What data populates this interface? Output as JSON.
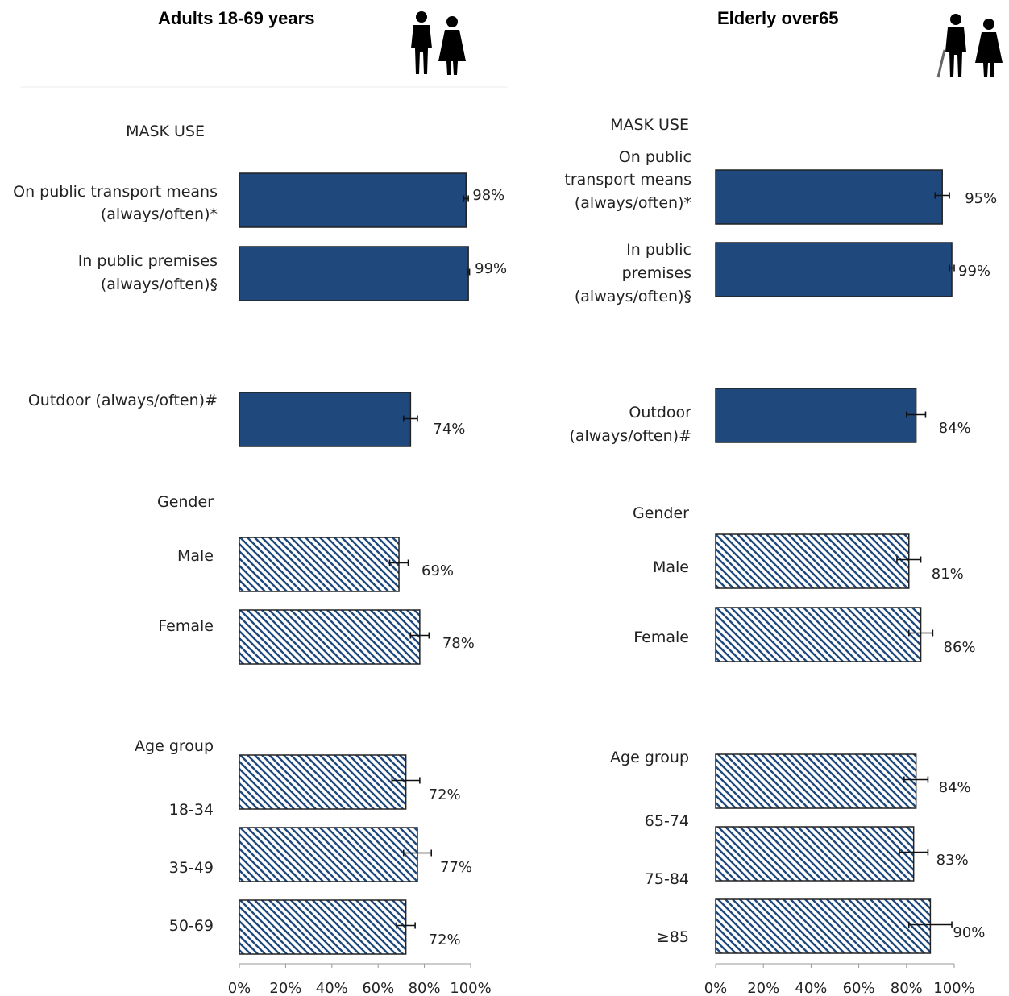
{
  "chart_data": [
    {
      "type": "bar",
      "orientation": "horizontal",
      "title": "Adults 18-69 years",
      "xlim": [
        0,
        100
      ],
      "x_ticks": [
        "0%",
        "20%",
        "40%",
        "60%",
        "80%",
        "100%"
      ],
      "colors": {
        "solid": "#1f497d",
        "hatch": "#1f497d"
      },
      "groups": [
        {
          "label": "MASK USE",
          "style": "solid",
          "bars": [
            {
              "label": [
                "On public transport means",
                "(always/often)*"
              ],
              "value": 98,
              "value_label": "98%",
              "err": 1
            },
            {
              "label": [
                "In public premises",
                "(always/often)§"
              ],
              "value": 99,
              "value_label": "99%",
              "err": 0.5
            },
            {
              "label": [
                "Outdoor (always/often)#"
              ],
              "value": 74,
              "value_label": "74%",
              "err": 3
            }
          ]
        },
        {
          "label": "Gender",
          "style": "hatch",
          "bars": [
            {
              "label": [
                "Male"
              ],
              "value": 69,
              "value_label": "69%",
              "err": 4
            },
            {
              "label": [
                "Female"
              ],
              "value": 78,
              "value_label": "78%",
              "err": 4
            }
          ]
        },
        {
          "label": "Age group",
          "style": "hatch",
          "bars": [
            {
              "label": [
                "18-34"
              ],
              "value": 72,
              "value_label": "72%",
              "err": 6
            },
            {
              "label": [
                "35-49"
              ],
              "value": 77,
              "value_label": "77%",
              "err": 6
            },
            {
              "label": [
                "50-69"
              ],
              "value": 72,
              "value_label": "72%",
              "err": 4
            }
          ]
        }
      ]
    },
    {
      "type": "bar",
      "orientation": "horizontal",
      "title": "Elderly over65",
      "xlim": [
        0,
        100
      ],
      "x_ticks": [
        "0%",
        "20%",
        "40%",
        "60%",
        "80%",
        "100%"
      ],
      "colors": {
        "solid": "#1f497d",
        "hatch": "#1f497d"
      },
      "groups": [
        {
          "label": "MASK USE",
          "style": "solid",
          "bars": [
            {
              "label": [
                "On public",
                "transport means",
                "(always/often)*"
              ],
              "value": 95,
              "value_label": "95%",
              "err": 3
            },
            {
              "label": [
                "In public",
                "premises",
                "(always/often)§"
              ],
              "value": 99,
              "value_label": "99%",
              "err": 1
            },
            {
              "label": [
                "Outdoor",
                "(always/often)#"
              ],
              "value": 84,
              "value_label": "84%",
              "err": 4
            }
          ]
        },
        {
          "label": "Gender",
          "style": "hatch",
          "bars": [
            {
              "label": [
                "Male"
              ],
              "value": 81,
              "value_label": "81%",
              "err": 5
            },
            {
              "label": [
                "Female"
              ],
              "value": 86,
              "value_label": "86%",
              "err": 5
            }
          ]
        },
        {
          "label": "Age group",
          "style": "hatch",
          "bars": [
            {
              "label": [
                "65-74"
              ],
              "value": 84,
              "value_label": "84%",
              "err": 5
            },
            {
              "label": [
                "75-84"
              ],
              "value": 83,
              "value_label": "83%",
              "err": 6
            },
            {
              "label": [
                "≥85"
              ],
              "value": 90,
              "value_label": "90%",
              "err": 9
            }
          ]
        }
      ]
    }
  ],
  "icons": [
    "couple-icon",
    "elderly-couple-icon"
  ]
}
